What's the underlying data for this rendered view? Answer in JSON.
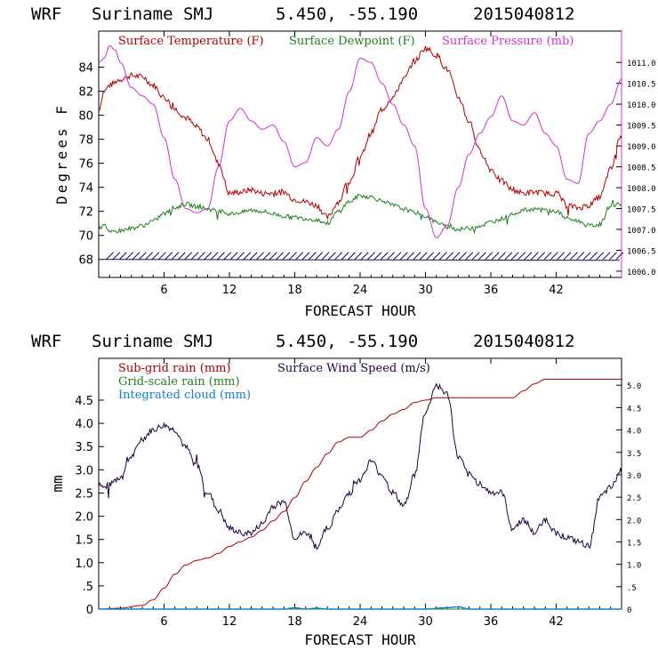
{
  "header_top": {
    "model": "WRF",
    "location": "Suriname SMJ",
    "coords": "5.450, -55.190",
    "run": "2015040812"
  },
  "header_bottom": {
    "model": "WRF",
    "location": "Suriname SMJ",
    "coords": "5.450, -55.190",
    "run": "2015040812"
  },
  "colors": {
    "temp": "#b00000",
    "dew": "#208020",
    "pres": "#d030d0",
    "wind": "#200040",
    "cloud": "#1080d0",
    "barb": "#200060"
  },
  "chart_data": [
    {
      "type": "line",
      "title": "",
      "xlabel": "FORECAST HOUR",
      "ylabel": "Degrees F",
      "xlim": [
        0,
        48
      ],
      "ylim": [
        66.5,
        87
      ],
      "x_ticks": [
        6,
        12,
        18,
        24,
        30,
        36,
        42
      ],
      "y_ticks": [
        68,
        70,
        72,
        74,
        76,
        78,
        80,
        82,
        84
      ],
      "y2_label": "",
      "y2lim": [
        1005.85,
        1011.75
      ],
      "y2_ticks": [
        "1006.0",
        "1006.5",
        "1007.0",
        "1007.5",
        "1008.0",
        "1008.5",
        "1009.0",
        "1009.5",
        "1010.0",
        "1010.5",
        "1011.0"
      ],
      "legend": [
        "Surface Temperature (F)",
        "Surface Dewpoint (F)",
        "Surface Pressure (mb)"
      ],
      "wind_barbs_level": 68,
      "series": [
        {
          "name": "Surface Temperature (F)",
          "axis": "left",
          "x": [
            0,
            0.5,
            1,
            2,
            3,
            4,
            5,
            6,
            7,
            8,
            9,
            10,
            11,
            12,
            13,
            14,
            15,
            16,
            17,
            18,
            19,
            20,
            21,
            22,
            23,
            24,
            25,
            26,
            27,
            28,
            29,
            30,
            31,
            32,
            33,
            34,
            35,
            36,
            37,
            38,
            39,
            40,
            41,
            42,
            43,
            44,
            45,
            46,
            47,
            48
          ],
          "values": [
            80.5,
            82,
            82.5,
            83,
            83.3,
            83.2,
            82.5,
            81.5,
            80.5,
            79.8,
            79,
            78,
            76,
            73.5,
            73.6,
            73.8,
            73.5,
            73.5,
            73.6,
            73,
            72.8,
            72.5,
            71.5,
            72.8,
            74.5,
            76.5,
            78.5,
            80.5,
            81.5,
            83,
            84.5,
            85.6,
            85,
            83.8,
            81.5,
            79.5,
            77,
            75.5,
            74.5,
            73.8,
            73.5,
            73.6,
            73.5,
            73.5,
            72.5,
            72.3,
            72.5,
            73.2,
            75.5,
            78.5
          ]
        },
        {
          "name": "Surface Dewpoint (F)",
          "axis": "left",
          "x": [
            0,
            0.5,
            1,
            2,
            3,
            4,
            5,
            6,
            7,
            8,
            9,
            10,
            11,
            12,
            13,
            14,
            15,
            16,
            17,
            18,
            19,
            20,
            21,
            22,
            23,
            24,
            25,
            26,
            27,
            28,
            29,
            30,
            31,
            32,
            33,
            34,
            35,
            36,
            37,
            38,
            39,
            40,
            41,
            42,
            43,
            44,
            45,
            46,
            47,
            48
          ],
          "values": [
            70.5,
            71,
            70.2,
            70.4,
            70.6,
            70.8,
            71.2,
            71.8,
            72.3,
            72.6,
            72.4,
            72.2,
            72,
            71.8,
            71.9,
            72.1,
            72,
            71.8,
            71.6,
            71.5,
            71.4,
            71.3,
            71,
            72,
            72.8,
            73.3,
            73.2,
            72.9,
            72.5,
            72.2,
            71.9,
            71.6,
            71.1,
            70.7,
            70.5,
            70.6,
            70.8,
            71.1,
            71.4,
            71.8,
            72.1,
            72.2,
            72.1,
            72,
            71.4,
            71.2,
            70.8,
            70.9,
            72.5,
            72.6
          ]
        },
        {
          "name": "Surface Pressure (mb)",
          "axis": "right",
          "x": [
            0,
            0.5,
            1,
            1.5,
            2,
            3,
            4,
            5,
            6,
            7,
            8,
            9,
            10,
            11,
            12,
            13,
            14,
            15,
            16,
            17,
            18,
            19,
            20,
            21,
            22,
            23,
            24,
            25,
            26,
            27,
            28,
            29,
            30,
            31,
            32,
            33,
            34,
            35,
            36,
            37,
            38,
            39,
            40,
            41,
            42,
            43,
            44,
            45,
            46,
            47,
            48
          ],
          "values": [
            1011.0,
            1011.1,
            1011.4,
            1011.3,
            1011.0,
            1010.4,
            1010.2,
            1010.0,
            1009.2,
            1008.2,
            1007.5,
            1007.4,
            1007.5,
            1008.5,
            1009.6,
            1009.9,
            1009.6,
            1009.4,
            1009.5,
            1009.1,
            1008.5,
            1008.6,
            1009.2,
            1009.0,
            1009.4,
            1010.3,
            1011.1,
            1011.0,
            1010.5,
            1010.0,
            1009.5,
            1009.0,
            1007.5,
            1006.8,
            1007.1,
            1008.0,
            1008.8,
            1009.3,
            1009.7,
            1010.2,
            1009.6,
            1009.5,
            1009.8,
            1009.3,
            1009.0,
            1008.2,
            1008.1,
            1009.3,
            1009.6,
            1010.0,
            1010.6
          ]
        }
      ]
    },
    {
      "type": "line",
      "title": "",
      "xlabel": "FORECAST HOUR",
      "ylabel": "mm",
      "xlim": [
        0,
        48
      ],
      "ylim": [
        0,
        5.4
      ],
      "x_ticks": [
        6,
        12,
        18,
        24,
        30,
        36,
        42
      ],
      "y_ticks": [
        "0",
        ".5",
        "1.0",
        "1.5",
        "2.0",
        "2.5",
        "3.0",
        "3.5",
        "4.0",
        "4.5"
      ],
      "y2lim": [
        0,
        5.6
      ],
      "y2_ticks": [
        "0",
        ".5",
        "1.0",
        "1.5",
        "2.0",
        "2.5",
        "3.0",
        "3.5",
        "4.0",
        "4.5",
        "5.0"
      ],
      "legend": [
        "Sub-grid rain (mm)",
        "Grid-scale rain (mm)",
        "Integrated cloud (mm)",
        "Surface Wind Speed (m/s)"
      ],
      "series": [
        {
          "name": "Sub-grid rain (mm)",
          "axis": "left",
          "x": [
            0,
            2,
            4,
            5,
            6,
            7,
            8,
            9,
            10,
            11,
            12,
            13,
            14,
            15,
            16,
            17,
            18,
            19,
            20,
            21,
            22,
            23,
            24,
            25,
            26,
            27,
            28,
            29,
            30,
            31,
            32,
            33,
            34,
            35,
            36,
            37,
            38,
            39,
            40,
            41,
            42,
            43,
            44,
            45,
            46,
            47,
            48
          ],
          "values": [
            0,
            0.02,
            0.08,
            0.2,
            0.45,
            0.75,
            0.95,
            1.05,
            1.1,
            1.2,
            1.35,
            1.45,
            1.55,
            1.7,
            1.9,
            2.1,
            2.4,
            2.75,
            3.05,
            3.35,
            3.6,
            3.7,
            3.7,
            3.85,
            4.05,
            4.2,
            4.3,
            4.45,
            4.5,
            4.55,
            4.55,
            4.55,
            4.55,
            4.55,
            4.55,
            4.55,
            4.55,
            4.7,
            4.85,
            4.95,
            4.95,
            4.95,
            4.95,
            4.95,
            4.95,
            4.95,
            4.95
          ]
        },
        {
          "name": "Grid-scale rain (mm)",
          "axis": "left",
          "x": [
            0,
            48
          ],
          "values": [
            0,
            0
          ]
        },
        {
          "name": "Integrated cloud (mm)",
          "axis": "left",
          "x": [
            0,
            17,
            18,
            19,
            20,
            21,
            30,
            32,
            33,
            34,
            48
          ],
          "values": [
            0,
            0,
            0.03,
            0,
            0.02,
            0,
            0,
            0.03,
            0.05,
            0,
            0
          ]
        },
        {
          "name": "Surface Wind Speed (m/s)",
          "axis": "right",
          "x": [
            0,
            0.5,
            1,
            2,
            3,
            4,
            5,
            6,
            7,
            8,
            9,
            10,
            11,
            12,
            13,
            14,
            15,
            16,
            17,
            18,
            19,
            20,
            21,
            22,
            23,
            24,
            25,
            26,
            27,
            28,
            29,
            30,
            31,
            32,
            33,
            34,
            35,
            36,
            37,
            38,
            39,
            40,
            41,
            42,
            43,
            44,
            45,
            46,
            47,
            48
          ],
          "values": [
            2.8,
            2.7,
            2.8,
            2.9,
            3.4,
            3.8,
            4.0,
            4.1,
            4.0,
            3.6,
            3.2,
            2.6,
            2.2,
            1.8,
            1.7,
            1.7,
            1.9,
            2.3,
            2.4,
            1.6,
            1.7,
            1.4,
            1.8,
            2.2,
            2.6,
            2.9,
            3.3,
            3.0,
            2.6,
            2.3,
            3.0,
            4.4,
            5.0,
            4.8,
            3.4,
            3.0,
            2.8,
            2.6,
            2.6,
            1.8,
            2.0,
            1.7,
            2.0,
            1.7,
            1.6,
            1.5,
            1.4,
            2.5,
            2.7,
            3.1
          ]
        }
      ]
    }
  ]
}
